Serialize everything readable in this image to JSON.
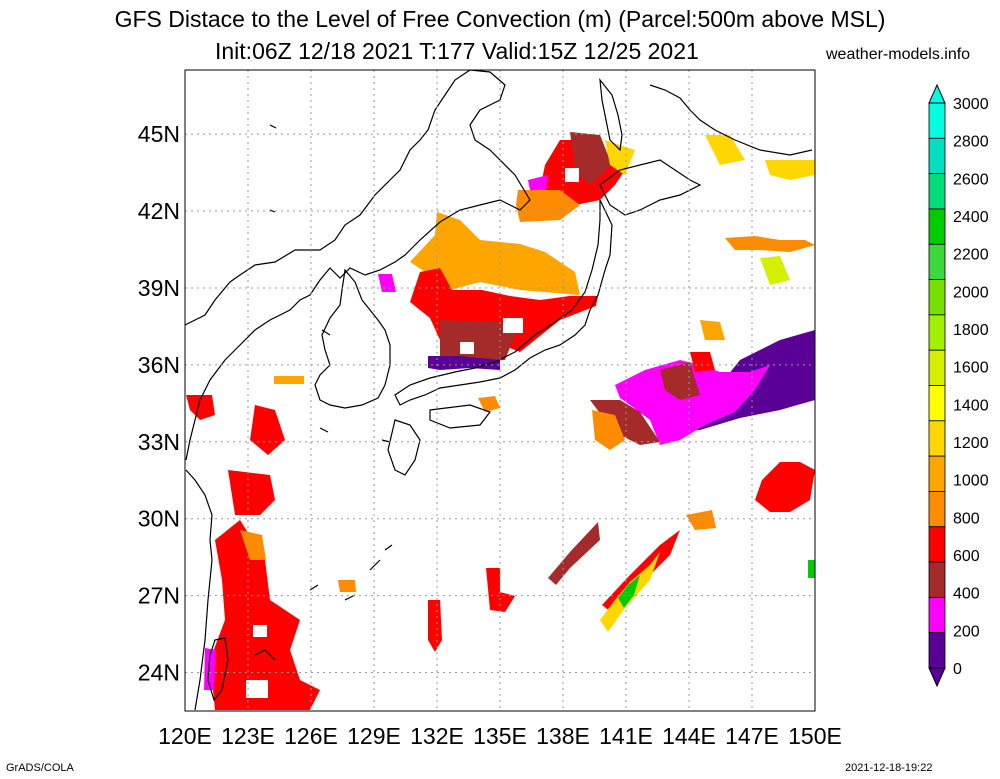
{
  "title": {
    "line1": "GFS Distace to the Level of Free Convection (m) (Parcel:500m above MSL)",
    "line2": "Init:06Z 12/18 2021 T:177 Valid:15Z 12/25 2021",
    "site": "weather-models.info"
  },
  "footer": {
    "left": "GrADS/COLA",
    "right": "2021-12-18-19:22"
  },
  "map": {
    "lon_range": [
      120,
      150
    ],
    "lat_range": [
      22.5,
      47.5
    ],
    "lon_ticks": [
      "120E",
      "123E",
      "126E",
      "129E",
      "132E",
      "135E",
      "138E",
      "141E",
      "144E",
      "147E",
      "150E"
    ],
    "lat_ticks": [
      "24N",
      "27N",
      "30N",
      "33N",
      "36N",
      "39N",
      "42N",
      "45N"
    ],
    "grid": "dotted"
  },
  "colorbar": {
    "levels": [
      "0",
      "200",
      "400",
      "600",
      "800",
      "1000",
      "1200",
      "1400",
      "1600",
      "1800",
      "2000",
      "2200",
      "2400",
      "2600",
      "2800",
      "3000"
    ],
    "colors": [
      "#5a0096",
      "#ff00ff",
      "#a52a2a",
      "#ff0000",
      "#ff8c00",
      "#ffa500",
      "#ffd700",
      "#ffff00",
      "#d4f000",
      "#a0f000",
      "#78e000",
      "#3cd83c",
      "#00cc00",
      "#00dc78",
      "#00e0c0",
      "#00ffe0"
    ],
    "extend": "both"
  },
  "legend_colors": {
    "purple": "#5a0096",
    "magenta": "#ff00ff",
    "brown": "#a52a2a",
    "red": "#ff0000",
    "dark_orange": "#ff8c00",
    "orange": "#ffa500",
    "gold": "#ffd700",
    "green": "#00cc00"
  }
}
